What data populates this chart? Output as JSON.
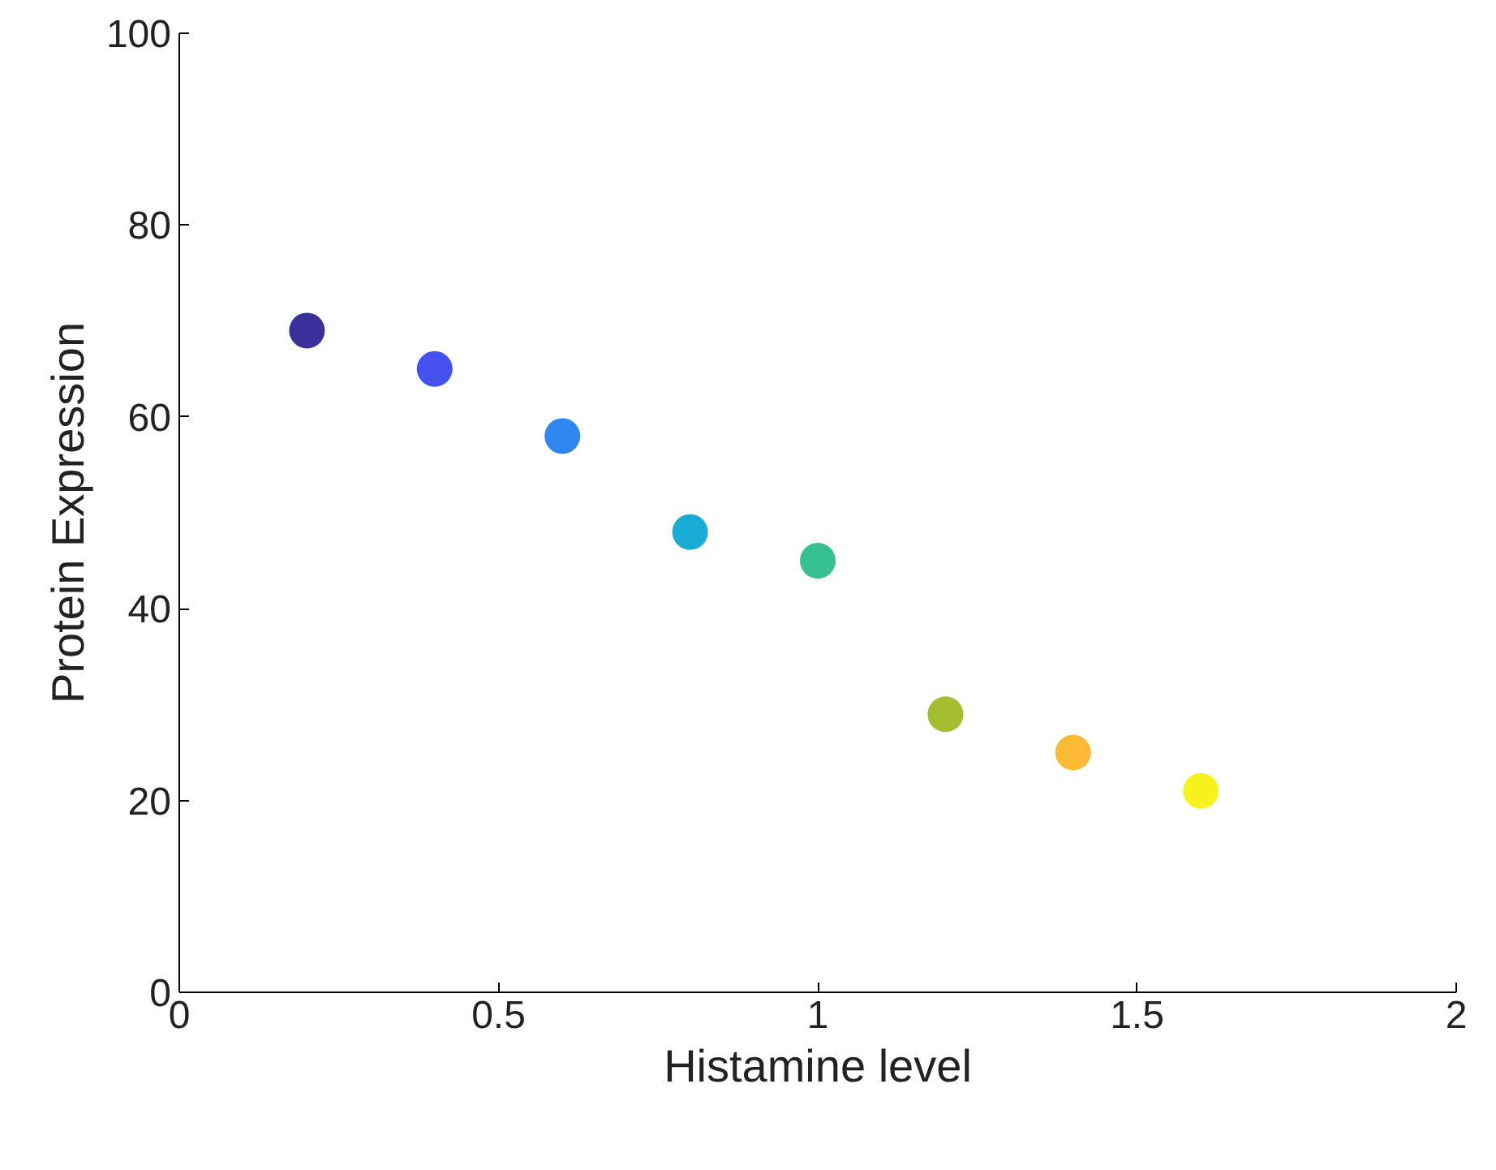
{
  "chart_data": {
    "type": "scatter",
    "xlabel": "Histamine level",
    "ylabel": "Protein Expression",
    "x": [
      0.2,
      0.4,
      0.6,
      0.8,
      1.0,
      1.2,
      1.4,
      1.6
    ],
    "values": [
      69,
      65,
      58,
      48,
      45,
      29,
      25,
      21
    ],
    "colors": [
      "#3b2f9c",
      "#4451ee",
      "#2f86ef",
      "#17abd6",
      "#35c08e",
      "#a2be2f",
      "#fbba34",
      "#f8f21c"
    ],
    "xlim": [
      0,
      2
    ],
    "ylim": [
      0,
      100
    ],
    "xticks": [
      0,
      0.5,
      1,
      1.5,
      2
    ],
    "yticks": [
      0,
      20,
      40,
      60,
      80,
      100
    ],
    "grid": false,
    "marker": "circle"
  }
}
